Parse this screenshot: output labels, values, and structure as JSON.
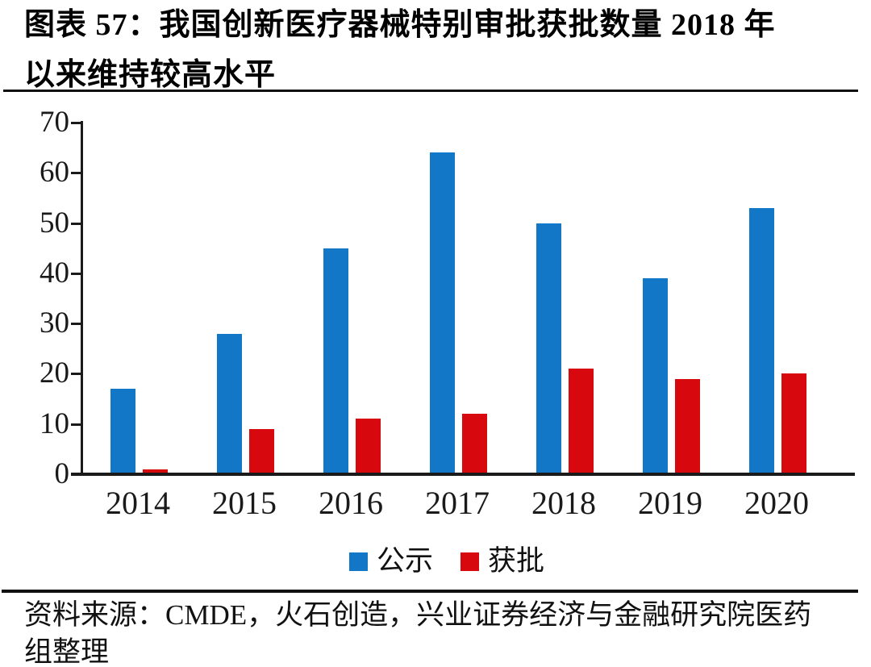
{
  "figure": {
    "title_line1": "图表 57：我国创新医疗器械特别审批获批数量 2018 年",
    "title_line2": "以来维持较高水平",
    "source_line1": "资料来源：CMDE，火石创造，兴业证券经济与金融研究院医药",
    "source_line2": "组整理"
  },
  "chart_data": {
    "type": "bar",
    "title": "我国创新医疗器械特别审批获批数量",
    "categories": [
      "2014",
      "2015",
      "2016",
      "2017",
      "2018",
      "2019",
      "2020"
    ],
    "series": [
      {
        "name": "公示",
        "color": "#1377C8",
        "values": [
          17,
          28,
          45,
          64,
          50,
          39,
          53
        ]
      },
      {
        "name": "获批",
        "color": "#D8080F",
        "values": [
          1,
          9,
          11,
          12,
          21,
          19,
          20
        ]
      }
    ],
    "xlabel": "",
    "ylabel": "",
    "ylim": [
      0,
      70
    ],
    "yticks": [
      0,
      10,
      20,
      30,
      40,
      50,
      60,
      70
    ],
    "grid": false,
    "legend_position": "bottom-center"
  },
  "colors": {
    "background": "#ffffff",
    "text": "#000000",
    "axis": "#1a1a1a",
    "rule": "#111111"
  }
}
